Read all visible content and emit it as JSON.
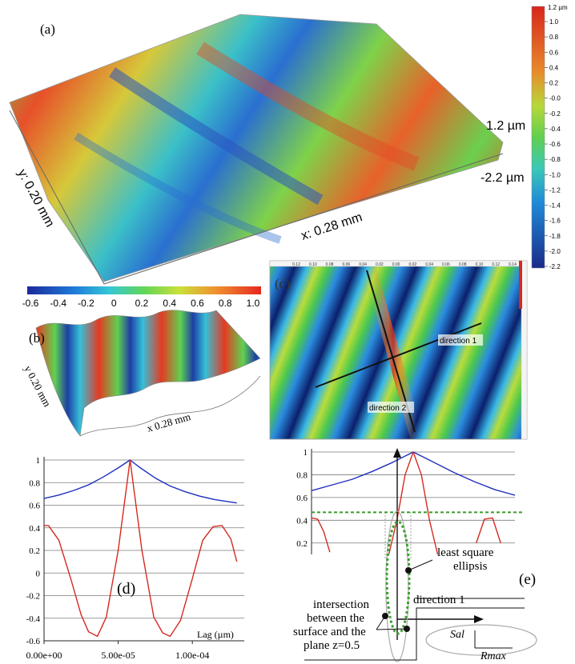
{
  "panels": {
    "a": {
      "label": "(a)",
      "x_axis": "x: 0.28 mm",
      "y_axis": "y: 0.20 mm",
      "z_top": "1.2 µm",
      "z_bottom": "-2.2 µm",
      "colorbar": {
        "top_label": "1.2 µm",
        "ticks": [
          "1.0",
          "0.8",
          "0.6",
          "0.4",
          "0.2",
          "-0.0",
          "-0.2",
          "-0.4",
          "-0.6",
          "-0.8",
          "-1.0",
          "-1.2",
          "-1.4",
          "-1.6",
          "-1.8",
          "-2.0",
          "-2.2"
        ]
      }
    },
    "b": {
      "label": "(b)",
      "x_axis": "x 0.28 mm",
      "y_axis": "y 0.20 mm",
      "colorbar_ticks": [
        "-0.6",
        "-0.4",
        "-0.2",
        "0",
        "0.2",
        "0.4",
        "0.6",
        "0.8",
        "1.0"
      ]
    },
    "c": {
      "label": "(c)",
      "direction1": "direction 1",
      "direction2": "direction 2",
      "x_ticks": [
        "0.12",
        "0.10",
        "0.08",
        "0.06",
        "0.04",
        "0.02",
        "0.00",
        "0.02",
        "0.04",
        "0.06",
        "0.08",
        "0.10",
        "0.12",
        "0.14"
      ]
    },
    "d": {
      "label": "(d)",
      "xlabel": "Lag (µm)"
    },
    "e": {
      "label": "(e)",
      "least_square_line1": "least square",
      "least_square_line2": "ellipsis",
      "direction1": "direction 1",
      "intersection_lines": [
        "intersection",
        "between the",
        "surface and the",
        "plane z=0.5"
      ],
      "sal": "Sal",
      "rmax": "Rmax"
    }
  },
  "chart_data": [
    {
      "type": "line",
      "panel": "d",
      "xlabel": "Lag (µm)",
      "ylabel": "",
      "ylim": [
        -0.6,
        1.0
      ],
      "yticks": [
        -0.6,
        -0.4,
        -0.2,
        0,
        0.2,
        0.4,
        0.6,
        0.8,
        1
      ],
      "xlim": [
        0,
        0.000135
      ],
      "xticks": [
        0,
        5e-05,
        0.0001
      ],
      "xtick_labels": [
        "0.00e+00",
        "5.00e-05",
        "1.00e-04"
      ],
      "grid": "horizontal",
      "series": [
        {
          "color": "#1f2fbf",
          "x": [
            0,
            1e-05,
            2e-05,
            3e-05,
            4e-05,
            5e-05,
            5.8e-05,
            6.5e-05,
            7.5e-05,
            8.5e-05,
            9.5e-05,
            0.000105,
            0.000115,
            0.000125,
            0.00013
          ],
          "y": [
            0.66,
            0.69,
            0.73,
            0.78,
            0.85,
            0.93,
            1.0,
            0.93,
            0.84,
            0.77,
            0.72,
            0.68,
            0.65,
            0.63,
            0.62
          ]
        },
        {
          "color": "#d42a1f",
          "x": [
            0,
            3e-06,
            1e-05,
            1.8e-05,
            2.5e-05,
            3e-05,
            3.6e-05,
            4.2e-05,
            5e-05,
            5.8e-05,
            6.6e-05,
            7.4e-05,
            8e-05,
            8.5e-05,
            9.2e-05,
            0.0001,
            0.000107,
            0.000114,
            0.00012,
            0.000126,
            0.00013
          ],
          "y": [
            0.42,
            0.42,
            0.29,
            -0.05,
            -0.37,
            -0.52,
            -0.56,
            -0.39,
            0.2,
            1.0,
            0.2,
            -0.39,
            -0.53,
            -0.56,
            -0.42,
            -0.05,
            0.29,
            0.41,
            0.42,
            0.3,
            0.1
          ]
        }
      ]
    },
    {
      "type": "line",
      "panel": "e",
      "ylim": [
        0.1,
        1.0
      ],
      "yticks": [
        0.2,
        0.4,
        0.6,
        0.8,
        1
      ],
      "yticks_shown": [
        "0.2",
        "0.4",
        "0.6",
        "0.8",
        "1"
      ],
      "threshold": 0.47,
      "grid": "horizontal",
      "series": [
        {
          "color": "#1f2fbf",
          "x": [
            0,
            0.1,
            0.2,
            0.3,
            0.4,
            0.5,
            0.6,
            0.7,
            0.8,
            0.9,
            1.0
          ],
          "y": [
            0.66,
            0.71,
            0.76,
            0.83,
            0.91,
            1.0,
            0.91,
            0.82,
            0.74,
            0.67,
            0.62
          ]
        },
        {
          "color": "#d42a1f",
          "x": [
            0.38,
            0.42,
            0.46,
            0.5,
            0.54,
            0.58,
            0.62
          ],
          "y": [
            0.1,
            0.4,
            0.8,
            1.0,
            0.8,
            0.4,
            0.1
          ]
        },
        {
          "color": "#d42a1f",
          "x": [
            0.0,
            0.03,
            0.06,
            0.09
          ],
          "y": [
            0.42,
            0.41,
            0.3,
            0.12
          ]
        },
        {
          "color": "#d42a1f",
          "x": [
            0.81,
            0.85,
            0.89,
            0.93
          ],
          "y": [
            0.2,
            0.41,
            0.42,
            0.2
          ]
        }
      ]
    }
  ]
}
